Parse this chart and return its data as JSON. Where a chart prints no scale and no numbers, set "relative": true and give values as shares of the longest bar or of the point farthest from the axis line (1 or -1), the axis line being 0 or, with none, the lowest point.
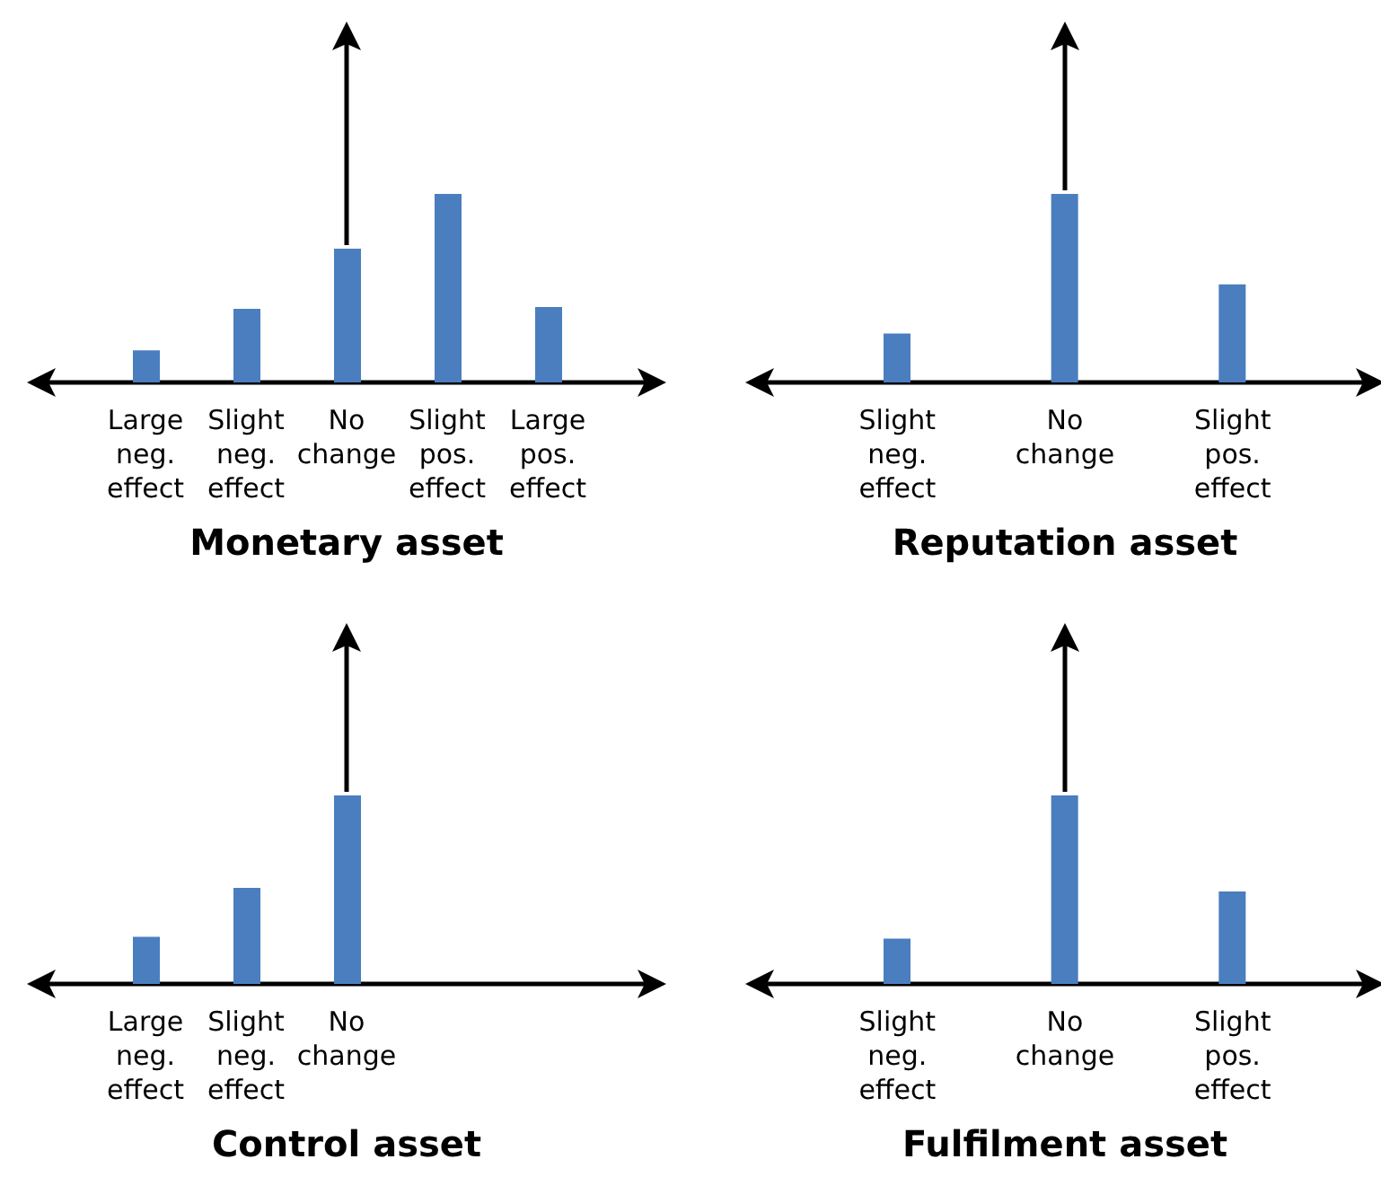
{
  "chart_data": [
    {
      "type": "bar",
      "title": "Monetary asset",
      "categories": [
        "Large neg. effect",
        "Slight neg. effect",
        "No change",
        "Slight pos. effect",
        "Large pos. effect"
      ],
      "values": [
        0.17,
        0.39,
        0.71,
        1,
        0.4
      ],
      "color": "#4a7ebf",
      "relative": true,
      "grid": false,
      "legend": false
    },
    {
      "type": "bar",
      "title": "Reputation asset",
      "categories": [
        "Slight neg. effect",
        "No change",
        "Slight pos. effect"
      ],
      "values": [
        0.26,
        1,
        0.52
      ],
      "color": "#4a7ebf",
      "relative": true,
      "grid": false,
      "legend": false
    },
    {
      "type": "bar",
      "title": "Control asset",
      "categories": [
        "Large neg. effect",
        "Slight neg. effect",
        "No change",
        null,
        null
      ],
      "values": [
        0.25,
        0.51,
        1,
        null,
        null
      ],
      "color": "#4a7ebf",
      "relative": true,
      "grid": false,
      "legend": false
    },
    {
      "type": "bar",
      "title": "Fulfilment asset",
      "categories": [
        "Slight neg. effect",
        "No change",
        "Slight pos. effect"
      ],
      "values": [
        0.24,
        1,
        0.49
      ],
      "color": "#4a7ebf",
      "relative": true,
      "grid": false,
      "legend": false
    }
  ]
}
